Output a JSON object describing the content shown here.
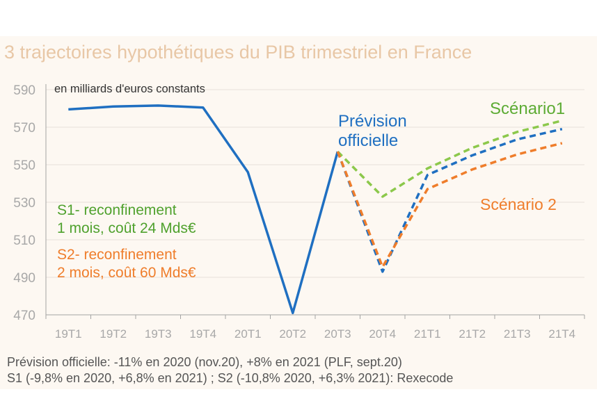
{
  "title": "3 trajectoires hypothétiques du PIB trimestriel en France",
  "colors": {
    "official": "#1f6fc1",
    "s1": "#8cc84b",
    "s2": "#ef7d2b",
    "grid": "#e6e1da",
    "axis": "#a3a3a3",
    "title": "#e8c7a6"
  },
  "chart_data": {
    "type": "line",
    "categories": [
      "19T1",
      "19T2",
      "19T3",
      "19T4",
      "20T1",
      "20T2",
      "20T3",
      "20T4",
      "21T1",
      "21T2",
      "21T3",
      "21T4"
    ],
    "ylim": [
      470,
      590
    ],
    "yticks": [
      470,
      490,
      510,
      530,
      550,
      570,
      590
    ],
    "unit_label": "en milliards d'euros constants",
    "series": [
      {
        "name": "Prévision officielle",
        "style": "solid",
        "color": "#1f6fc1",
        "values": [
          579.5,
          581,
          581.5,
          580.5,
          546,
          471,
          557,
          null,
          null,
          null,
          null,
          null
        ]
      },
      {
        "name": "Prévision officielle",
        "style": "dashed",
        "color": "#1f6fc1",
        "values": [
          null,
          null,
          null,
          null,
          null,
          null,
          557,
          493,
          544.5,
          555,
          563.5,
          569
        ]
      },
      {
        "name": "Scénario1",
        "style": "dashed",
        "color": "#8cc84b",
        "values": [
          null,
          null,
          null,
          null,
          null,
          null,
          557,
          533,
          548,
          559,
          567.5,
          573.5
        ]
      },
      {
        "name": "Scénario 2",
        "style": "dashed",
        "color": "#ef7d2b",
        "values": [
          null,
          null,
          null,
          null,
          null,
          null,
          557,
          495.5,
          537,
          547.5,
          555.5,
          561.5
        ]
      }
    ]
  },
  "annotations": {
    "official": [
      "Prévision",
      "officielle"
    ],
    "s1": "Scénario1",
    "s2": "Scénario 2",
    "s1_desc": [
      "S1- reconfinement",
      "1 mois, coût 24 Mds€"
    ],
    "s2_desc": [
      "S2- reconfinement",
      "2 mois, coût 60 Mds€"
    ]
  },
  "source": [
    "Prévision officielle: -11% en 2020 (nov.20), +8% en 2021 (PLF, sept.20)",
    "S1 (-9,8% en 2020, +6,8% en 2021) ; S2 (-10,8% 2020, +6,3% 2021): Rexecode"
  ]
}
